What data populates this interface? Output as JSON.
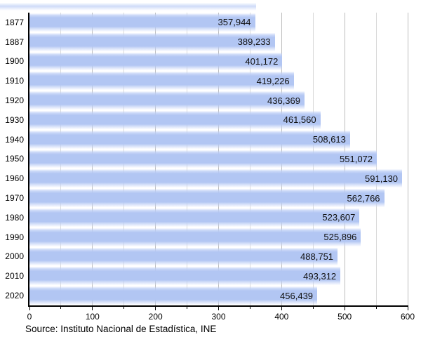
{
  "chart_data": {
    "type": "bar",
    "orientation": "horizontal",
    "title": "",
    "xlabel": "",
    "ylabel": "",
    "categories": [
      "1877",
      "1887",
      "1900",
      "1910",
      "1920",
      "1930",
      "1940",
      "1950",
      "1960",
      "1970",
      "1980",
      "1990",
      "2000",
      "2010",
      "2020"
    ],
    "values": [
      357944,
      389233,
      401172,
      419226,
      436369,
      461560,
      508613,
      551072,
      591130,
      562766,
      523607,
      525896,
      488751,
      493312,
      456439
    ],
    "value_labels": [
      "357,944",
      "389,233",
      "401,172",
      "419,226",
      "436,369",
      "461,560",
      "508,613",
      "551,072",
      "591,130",
      "562,766",
      "523,607",
      "525,896",
      "488,751",
      "493,312",
      "456,439"
    ],
    "x_axis": {
      "min": 0,
      "max": 600,
      "unit_divisor": 1000,
      "major_tick_step": 100,
      "minor_tick_step": 50,
      "tick_labels": [
        "0",
        "100",
        "200",
        "300",
        "400",
        "500",
        "600"
      ]
    },
    "grid": true,
    "legend": null
  },
  "footer": {
    "source_text": "Source: Instituto Nacional de Estadística, INE"
  },
  "colors": {
    "bar_core": "#b2c6f3",
    "bar_light": "#ccd9f8",
    "bar_fade": "#eef3fd",
    "grid_major": "#bdbdbd",
    "grid_minor": "#d9d9d9",
    "axis": "#000000",
    "background": "#ffffff",
    "label_text": "#111111"
  }
}
